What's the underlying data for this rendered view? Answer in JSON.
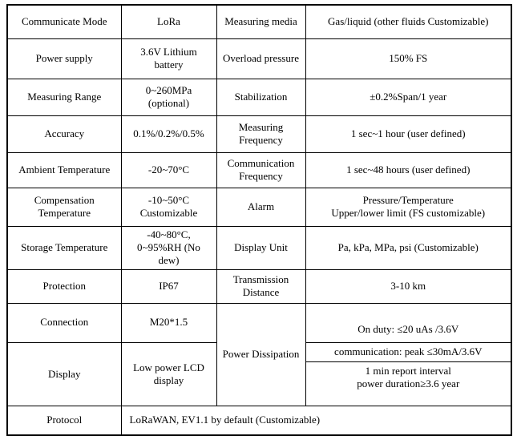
{
  "page": {
    "background": "#ffffff",
    "border_color": "#000000",
    "text_color": "#000000"
  },
  "table": {
    "rows": [
      {
        "label1": "Communicate Mode",
        "value1": "LoRa",
        "label2": "Measuring media",
        "value2": "Gas/liquid (other fluids Customizable)"
      },
      {
        "label1": "Power supply",
        "value1": "3.6V Lithium battery",
        "label2": "Overload pressure",
        "value2": "150% FS"
      },
      {
        "label1": "Measuring Range",
        "value1": "0~260MPa (optional)",
        "label2": "Stabilization",
        "value2": "±0.2%Span/1 year"
      },
      {
        "label1": "Accuracy",
        "value1": "0.1%/0.2%/0.5%",
        "label2": "Measuring Frequency",
        "value2": "1 sec~1 hour (user defined)"
      },
      {
        "label1": "Ambient Temperature",
        "value1": "-20~70°C",
        "label2": "Communication Frequency",
        "value2": "1 sec~48 hours (user defined)"
      },
      {
        "label1": "Compensation Temperature",
        "value1": "-10~50°C\nCustomizable",
        "label2": "Alarm",
        "value2": "Pressure/Temperature\nUpper/lower limit (FS customizable)"
      },
      {
        "label1": "Storage Temperature",
        "value1": "-40~80°C,\n0~95%RH (No dew)",
        "label2": "Display Unit",
        "value2": "Pa, kPa, MPa, psi (Customizable)"
      },
      {
        "label1": "Protection",
        "value1": "IP67",
        "label2": "Transmission Distance",
        "value2": "3-10 km"
      }
    ],
    "connection": {
      "label": "Connection",
      "value": "M20*1.5"
    },
    "display": {
      "label": "Display",
      "value": "Low power LCD display"
    },
    "power_dissipation": {
      "label": "Power Dissipation",
      "on_duty": "On duty: ≤20 uAs /3.6V",
      "communication": "communication: peak ≤30mA/3.6V",
      "report": "1 min report interval\npower duration≥3.6 year"
    },
    "protocol": {
      "label": "Protocol",
      "value": "LoRaWAN, EV1.1 by default (Customizable)"
    }
  }
}
